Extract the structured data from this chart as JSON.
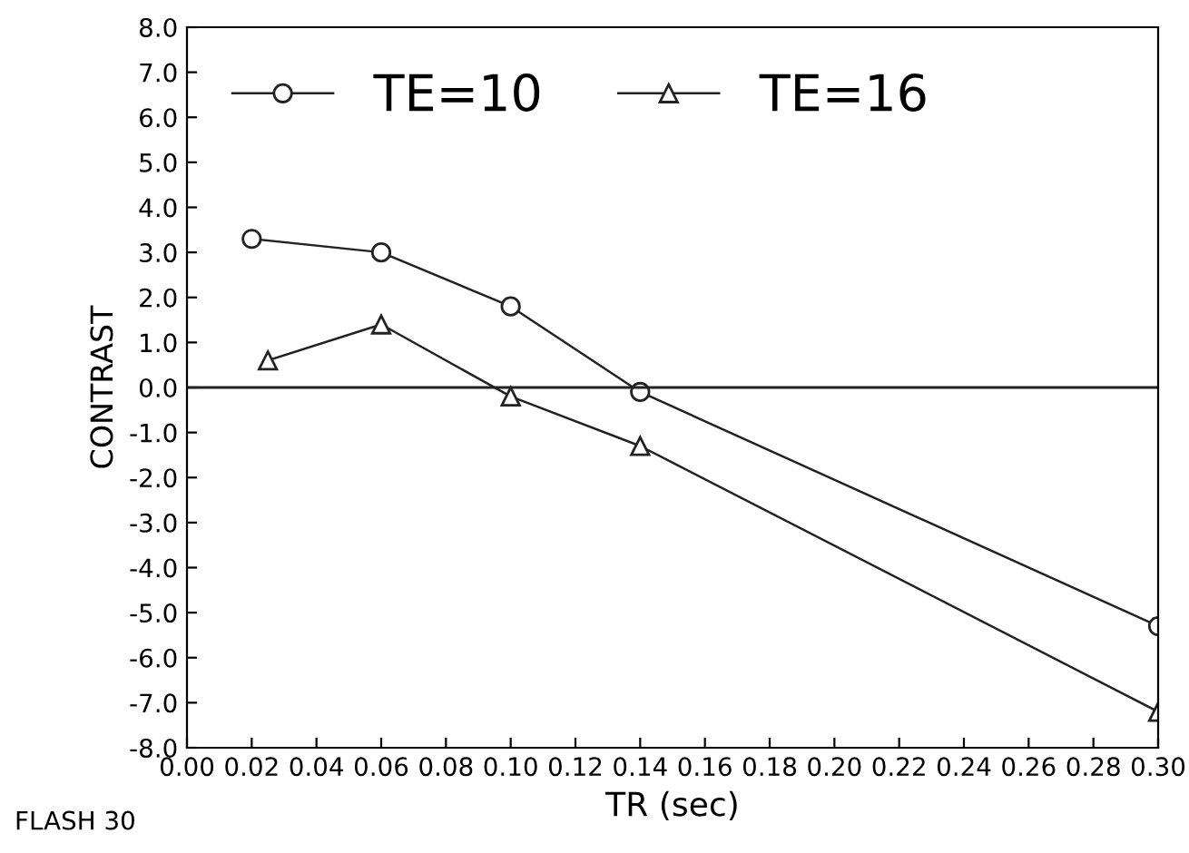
{
  "chart_data": {
    "type": "line",
    "xlabel": "TR (sec)",
    "ylabel": "CONTRAST",
    "annotations": [
      "FLASH 30"
    ],
    "xlim": [
      0.0,
      0.3
    ],
    "ylim": [
      -8.0,
      8.0
    ],
    "xticks": [
      {
        "value": 0.0,
        "label": "0.00"
      },
      {
        "value": 0.02,
        "label": "0.02"
      },
      {
        "value": 0.04,
        "label": "0.04"
      },
      {
        "value": 0.06,
        "label": "0.06"
      },
      {
        "value": 0.08,
        "label": "0.08"
      },
      {
        "value": 0.1,
        "label": "0.10"
      },
      {
        "value": 0.12,
        "label": "0.12"
      },
      {
        "value": 0.14,
        "label": "0.14"
      },
      {
        "value": 0.16,
        "label": "0.16"
      },
      {
        "value": 0.18,
        "label": "0.18"
      },
      {
        "value": 0.2,
        "label": "0.20"
      },
      {
        "value": 0.22,
        "label": "0.22"
      },
      {
        "value": 0.24,
        "label": "0.24"
      },
      {
        "value": 0.26,
        "label": "0.26"
      },
      {
        "value": 0.28,
        "label": "0.28"
      },
      {
        "value": 0.3,
        "label": "0.30"
      }
    ],
    "yticks": [
      {
        "value": 8,
        "label": "8.0"
      },
      {
        "value": 7,
        "label": "7.0"
      },
      {
        "value": 6,
        "label": "6.0"
      },
      {
        "value": 5,
        "label": "5.0"
      },
      {
        "value": 4,
        "label": "4.0"
      },
      {
        "value": 3,
        "label": "3.0"
      },
      {
        "value": 2,
        "label": "2.0"
      },
      {
        "value": 1,
        "label": "1.0"
      },
      {
        "value": 0,
        "label": "0.0"
      },
      {
        "value": -1,
        "label": "-1.0"
      },
      {
        "value": -2,
        "label": "-2.0"
      },
      {
        "value": -3,
        "label": "-3.0"
      },
      {
        "value": -4,
        "label": "-4.0"
      },
      {
        "value": -5,
        "label": "-5.0"
      },
      {
        "value": -6,
        "label": "-6.0"
      },
      {
        "value": -7,
        "label": "-7.0"
      },
      {
        "value": -8,
        "label": "-8.0"
      }
    ],
    "ref_lines": [
      {
        "axis": "y",
        "value": 0,
        "color": "#222222"
      }
    ],
    "grid": false,
    "legend": "top left",
    "series": [
      {
        "name": "TE=10",
        "color": "#222222",
        "marker": "circle",
        "x": [
          0.02,
          0.06,
          0.1,
          0.14,
          0.3
        ],
        "values": [
          3.3,
          3.0,
          1.8,
          -0.1,
          -5.3
        ]
      },
      {
        "name": "TE=16",
        "color": "#222222",
        "marker": "triangle",
        "x": [
          0.025,
          0.06,
          0.1,
          0.14,
          0.3
        ],
        "values": [
          0.6,
          1.4,
          -0.2,
          -1.3,
          -7.2
        ]
      }
    ]
  }
}
